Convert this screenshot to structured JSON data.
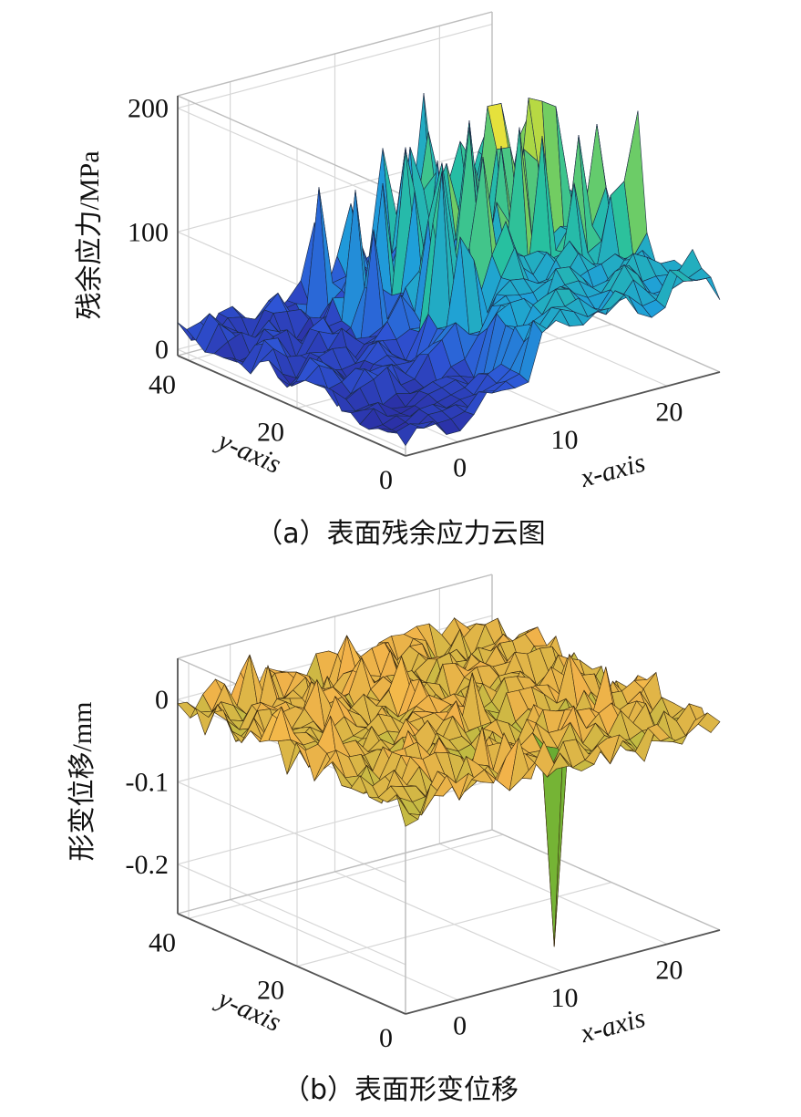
{
  "chart_data": [
    {
      "type": "surface",
      "caption": "（a）表面残余应力云图",
      "zlabel": "残余应力/MPa",
      "xlabel": "x-axis",
      "ylabel": "y-axis",
      "x_ticks": [
        "0",
        "10",
        "20"
      ],
      "y_ticks": [
        "0",
        "20",
        "40"
      ],
      "z_ticks": [
        "0",
        "100",
        "200"
      ],
      "xlim": [
        -5,
        25
      ],
      "ylim": [
        0,
        42
      ],
      "zlim": [
        0,
        210
      ],
      "grid": true,
      "colormap": [
        "#2a1f8f",
        "#2e55d6",
        "#1f9fd9",
        "#27c0a0",
        "#8ed24a",
        "#f2e33a",
        "#f2a43a"
      ],
      "surface_description_z_range": [
        5,
        215
      ]
    },
    {
      "type": "surface",
      "caption": "（b）表面形变位移",
      "zlabel": "形变位移/mm",
      "xlabel": "x-axis",
      "ylabel": "y-axis",
      "x_ticks": [
        "0",
        "10",
        "20"
      ],
      "y_ticks": [
        "0",
        "20",
        "40"
      ],
      "z_ticks": [
        "0",
        "-0.1",
        "-0.2"
      ],
      "xlim": [
        -5,
        25
      ],
      "ylim": [
        0,
        42
      ],
      "zlim": [
        -0.26,
        0.05
      ],
      "grid": true,
      "colormap": [
        "#3f8f2a",
        "#8cc43a",
        "#f2b24a",
        "#f7e64a"
      ],
      "min_spike": -0.25
    }
  ]
}
